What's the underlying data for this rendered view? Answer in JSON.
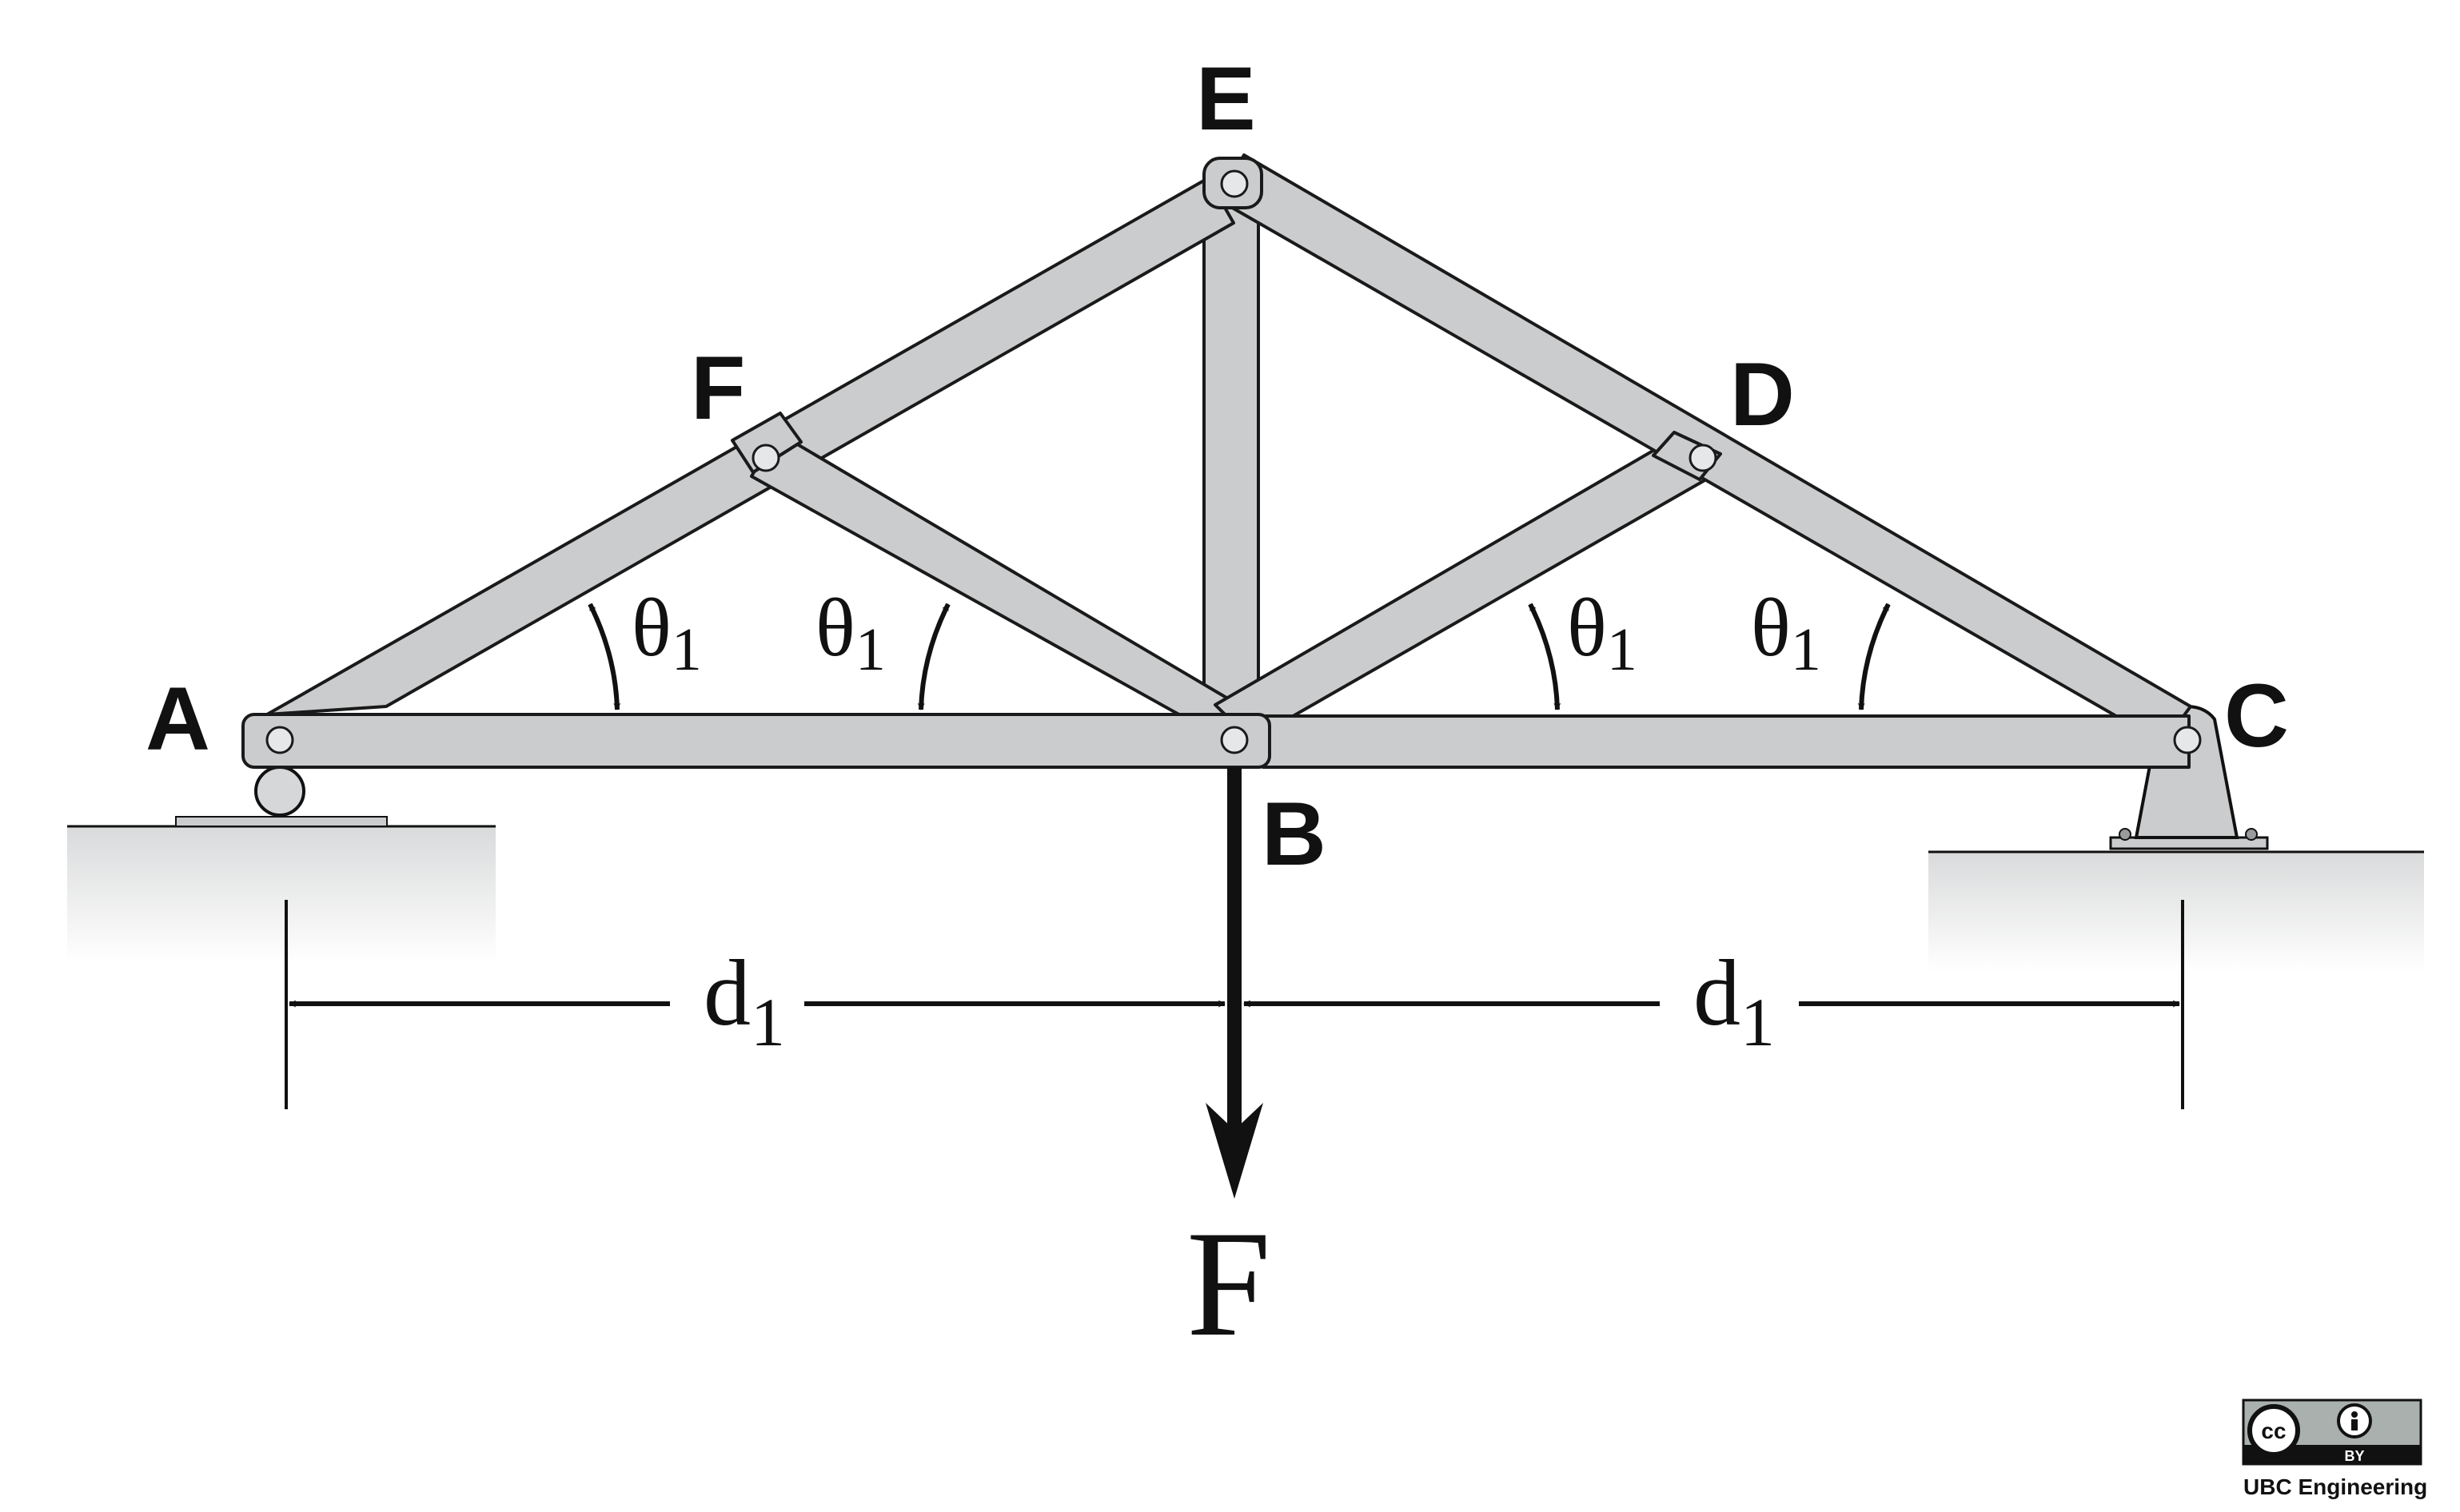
{
  "joints": {
    "A": "A",
    "B": "B",
    "C": "C",
    "D": "D",
    "E": "E",
    "F": "F"
  },
  "angle_label": {
    "symbol": "θ",
    "subscript": "1"
  },
  "dimension_label": {
    "symbol": "d",
    "subscript": "1"
  },
  "load_label": "F",
  "license_badge": {
    "cc": "cc",
    "by": "BY"
  },
  "credit": "UBC Engineering",
  "colors": {
    "member": "#cbcccd",
    "ground": "#d9dadb",
    "ink": "#111111"
  }
}
